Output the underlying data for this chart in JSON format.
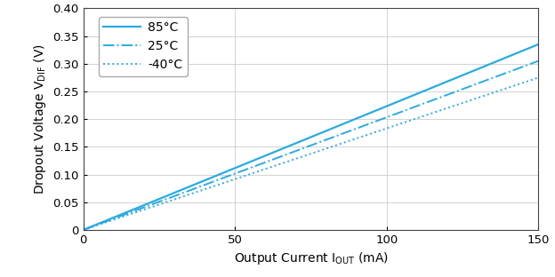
{
  "xlim": [
    0,
    150
  ],
  "ylim": [
    0,
    0.4
  ],
  "xticks": [
    0,
    50,
    100,
    150
  ],
  "yticks": [
    0,
    0.05,
    0.1,
    0.15,
    0.2,
    0.25,
    0.3,
    0.35,
    0.4
  ],
  "ytick_labels": [
    "0",
    "0.05",
    "0.10",
    "0.15",
    "0.20",
    "0.25",
    "0.30",
    "0.35",
    "0.40"
  ],
  "series": [
    {
      "label": "85°C",
      "slope": 0.002233,
      "intercept": 0.0,
      "color": "#29abe2",
      "linestyle": "solid",
      "linewidth": 1.6
    },
    {
      "label": "25°C",
      "slope": 0.002033,
      "intercept": 0.0,
      "color": "#29abe2",
      "linestyle": "dashdot",
      "linewidth": 1.4
    },
    {
      "label": "-40°C",
      "slope": 0.001833,
      "intercept": 0.0,
      "color": "#29abe2",
      "linestyle": "dotted",
      "linewidth": 1.4
    }
  ],
  "grid_color": "#cccccc",
  "background_color": "#ffffff",
  "font_size": 10,
  "tick_font_size": 9.5,
  "legend_fontsize": 10
}
